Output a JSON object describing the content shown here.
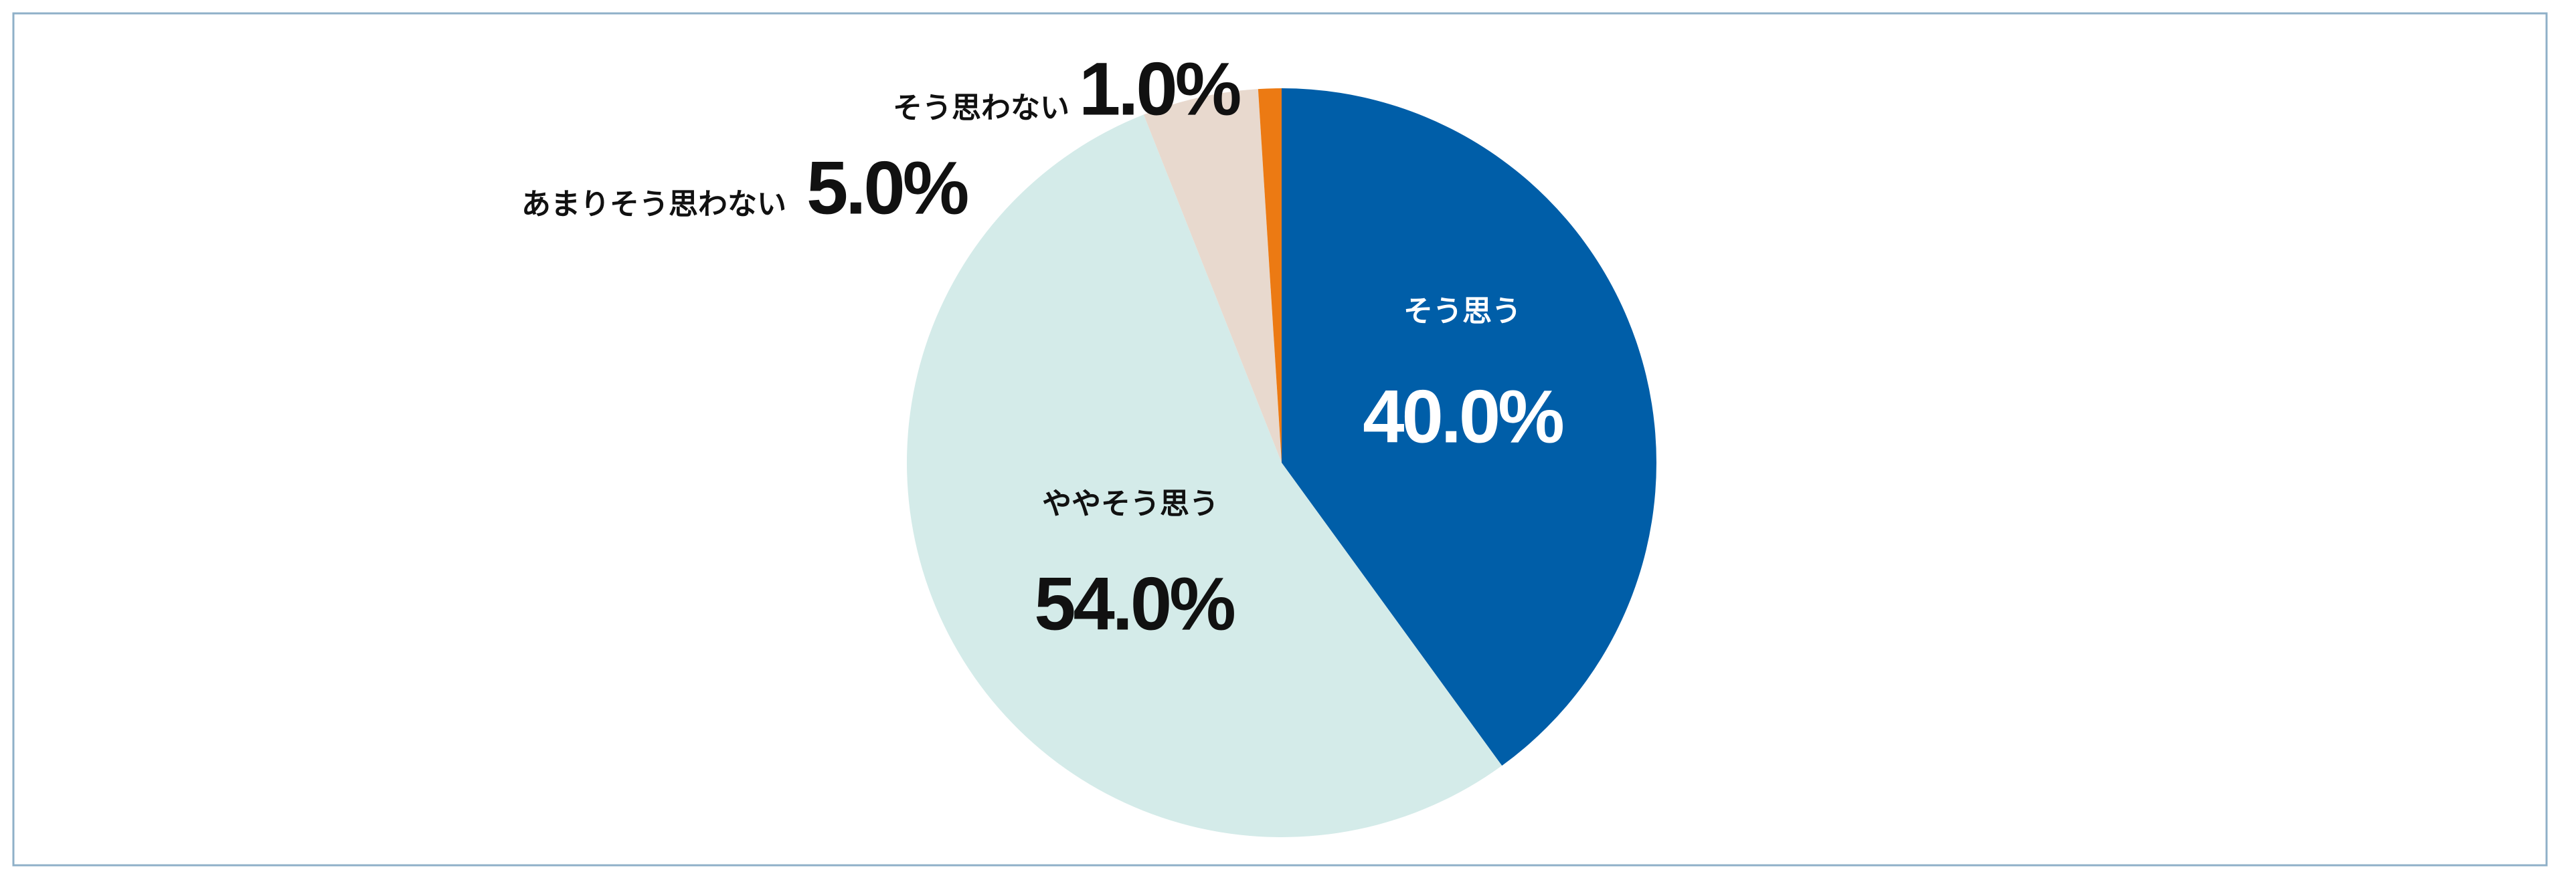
{
  "chart_data": {
    "type": "pie",
    "categories": [
      "そう思う",
      "ややそう思う",
      "あまりそう思わない",
      "そう思わない"
    ],
    "values": [
      40,
      54,
      5,
      1
    ],
    "value_labels": [
      "40.0%",
      "54.0%",
      "5.0%",
      "1.0%"
    ],
    "colors": [
      "#005ea8",
      "#d4ebe9",
      "#e8d9ce",
      "#ec7a13"
    ]
  }
}
